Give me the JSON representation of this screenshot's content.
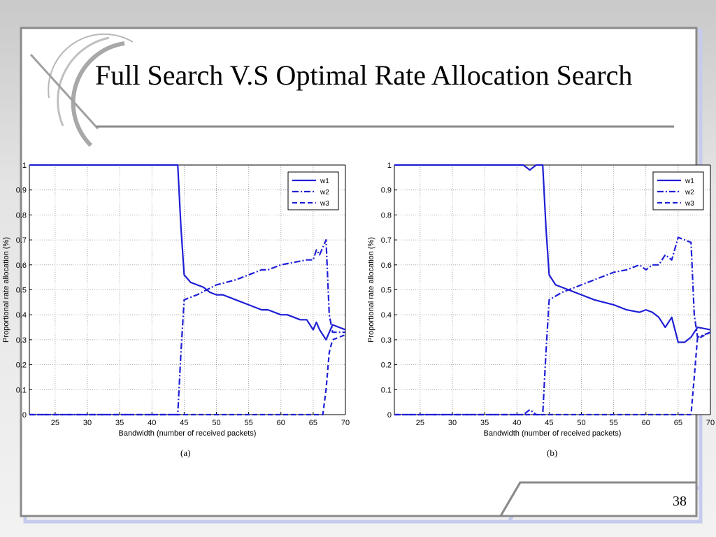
{
  "slide": {
    "title": "Full Search V.S Optimal Rate Allocation Search",
    "page_number": "38",
    "accent_color": "#1f1fd6"
  },
  "chart_data": [
    {
      "type": "line",
      "caption": "(a)",
      "xlabel": "Bandwidth (number of received packets)",
      "ylabel": "Proportional rate allocation (%)",
      "xlim": [
        21,
        70
      ],
      "ylim": [
        0,
        1
      ],
      "xticks": [
        25,
        30,
        35,
        40,
        45,
        50,
        55,
        60,
        65,
        70
      ],
      "yticks": [
        0,
        0.1,
        0.2,
        0.3,
        0.4,
        0.5,
        0.6,
        0.7,
        0.8,
        0.9,
        1
      ],
      "grid": true,
      "legend_position": "top-right",
      "series": [
        {
          "name": "w1",
          "style": "solid",
          "x": [
            21,
            44,
            44.5,
            45,
            46,
            48,
            49,
            50,
            51,
            53,
            55,
            57,
            58,
            60,
            61,
            63,
            64,
            65,
            65.5,
            66,
            67,
            68,
            70
          ],
          "y": [
            1,
            1,
            0.75,
            0.56,
            0.53,
            0.51,
            0.49,
            0.48,
            0.48,
            0.46,
            0.44,
            0.42,
            0.42,
            0.4,
            0.4,
            0.38,
            0.38,
            0.34,
            0.37,
            0.34,
            0.3,
            0.36,
            0.34
          ]
        },
        {
          "name": "w2",
          "style": "dashdot",
          "x": [
            21,
            44,
            44.5,
            45,
            47,
            50,
            53,
            55,
            57,
            58,
            60,
            62,
            64,
            65,
            65.5,
            66,
            67,
            67.5,
            68,
            70
          ],
          "y": [
            0,
            0,
            0.25,
            0.46,
            0.48,
            0.52,
            0.54,
            0.56,
            0.58,
            0.58,
            0.6,
            0.61,
            0.62,
            0.62,
            0.66,
            0.64,
            0.7,
            0.4,
            0.33,
            0.33
          ]
        },
        {
          "name": "w3",
          "style": "dashed",
          "x": [
            21,
            66.5,
            67,
            67.5,
            68,
            70
          ],
          "y": [
            0,
            0,
            0.1,
            0.25,
            0.3,
            0.32
          ]
        }
      ]
    },
    {
      "type": "line",
      "caption": "(b)",
      "xlabel": "Bandwidth (number of received packets)",
      "ylabel": "Proportional rate allocation (%)",
      "xlim": [
        21,
        70
      ],
      "ylim": [
        0,
        1
      ],
      "xticks": [
        25,
        30,
        35,
        40,
        45,
        50,
        55,
        60,
        65,
        70
      ],
      "yticks": [
        0,
        0.1,
        0.2,
        0.3,
        0.4,
        0.5,
        0.6,
        0.7,
        0.8,
        0.9,
        1
      ],
      "grid": true,
      "legend_position": "top-right",
      "series": [
        {
          "name": "w1",
          "style": "solid",
          "x": [
            21,
            41,
            42,
            43,
            44,
            44.5,
            45,
            46,
            48,
            50,
            52,
            55,
            57,
            59,
            60,
            61,
            62,
            63,
            64,
            65,
            66,
            67,
            68,
            70
          ],
          "y": [
            1,
            1,
            0.98,
            1,
            1,
            0.75,
            0.56,
            0.52,
            0.5,
            0.48,
            0.46,
            0.44,
            0.42,
            0.41,
            0.42,
            0.41,
            0.39,
            0.35,
            0.39,
            0.29,
            0.29,
            0.31,
            0.35,
            0.34
          ]
        },
        {
          "name": "w2",
          "style": "dashdot",
          "x": [
            21,
            41,
            42,
            43,
            44,
            44.5,
            45,
            47,
            50,
            53,
            55,
            57,
            59,
            60,
            61,
            62,
            63,
            64,
            65,
            66,
            67,
            67.5,
            68,
            70
          ],
          "y": [
            0,
            0,
            0.02,
            0,
            0,
            0.25,
            0.46,
            0.49,
            0.52,
            0.55,
            0.57,
            0.58,
            0.6,
            0.58,
            0.6,
            0.6,
            0.64,
            0.62,
            0.71,
            0.7,
            0.69,
            0.4,
            0.31,
            0.33
          ]
        },
        {
          "name": "w3",
          "style": "dashed",
          "x": [
            21,
            67,
            67.5,
            68,
            68.5,
            70
          ],
          "y": [
            0,
            0,
            0.15,
            0.31,
            0.31,
            0.33
          ]
        }
      ]
    }
  ]
}
